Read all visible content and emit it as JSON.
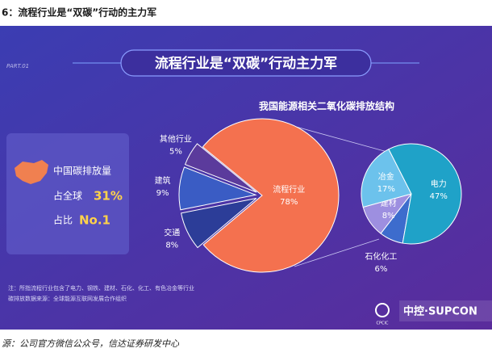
{
  "caption": "6：流程行业是“双碳”行动的主力军",
  "source": "源：公司官方微信公众号，信达证券研发中心",
  "slide": {
    "part": "PART.01",
    "heading": "流程行业是“双碳”行动主力军",
    "card": {
      "line1": "中国碳排放量",
      "share_label": "占全球",
      "share_value": "31%",
      "rank_label": "占比",
      "rank_value": "No.1"
    },
    "notes": [
      "注：所指流程行业包含了电力、钢铁、建材、石化、化工、有色冶金等行业",
      "碳排放数据来源：全球能源互联网发展合作组织"
    ],
    "logo_small": "CPCIC",
    "logo": "中控·SUPCON"
  },
  "chart_data": [
    {
      "type": "pie",
      "title": "我国能源相关二氧化碳排放结构",
      "categories": [
        "流程行业",
        "其他行业",
        "建筑",
        "交通"
      ],
      "values": [
        78,
        5,
        9,
        8
      ],
      "value_labels": [
        "78%",
        "5%",
        "9%",
        "8%"
      ],
      "colors": [
        "#f4714f",
        "#5b3b9c",
        "#3a5cc4",
        "#2c3d98"
      ]
    },
    {
      "type": "pie",
      "categories": [
        "电力",
        "冶金",
        "建材",
        "石化化工"
      ],
      "values": [
        47,
        17,
        8,
        6
      ],
      "value_labels": [
        "47%",
        "17%",
        "8%",
        "6%"
      ],
      "colors": [
        "#1fa2c8",
        "#6cc2ec",
        "#9d8fe0",
        "#3d6ccd"
      ]
    }
  ]
}
